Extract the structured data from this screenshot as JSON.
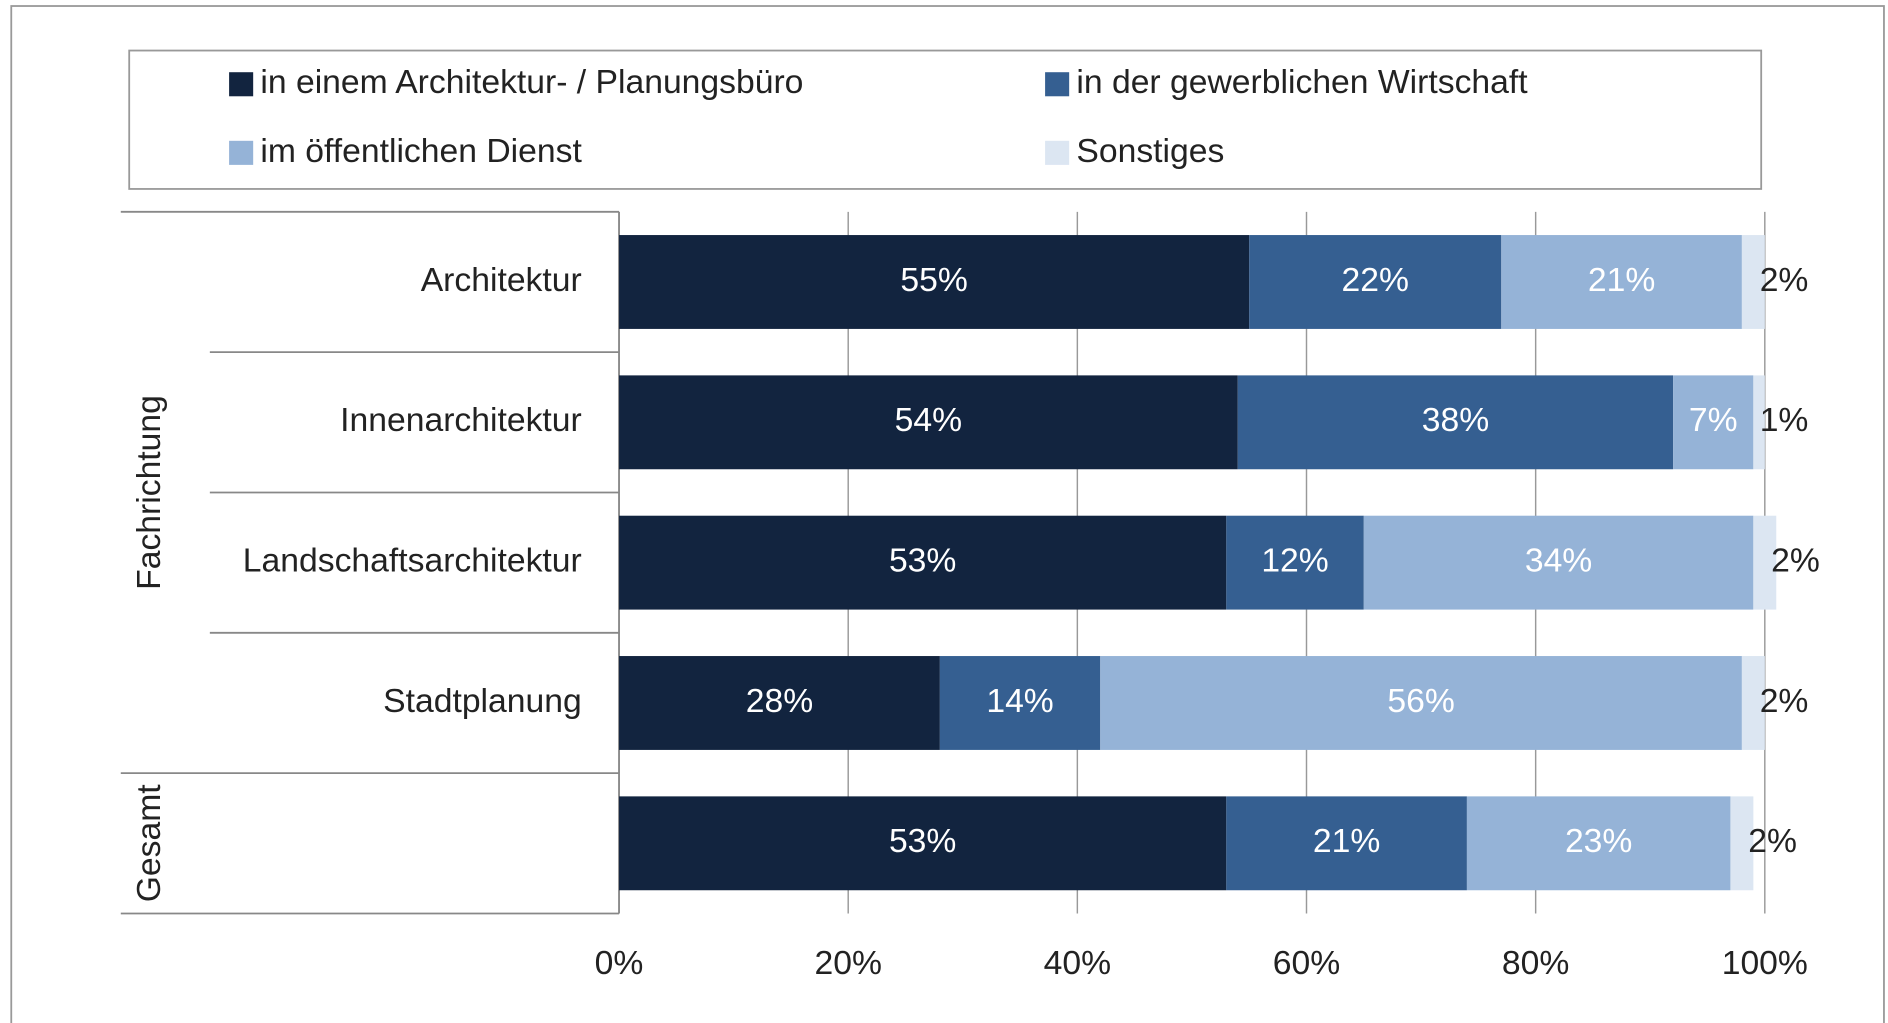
{
  "chart_data": {
    "type": "stacked_barh",
    "categories": [
      "Architektur",
      "Innenarchitektur",
      "Landschaftsarchitektur",
      "Stadtplanung",
      null
    ],
    "groups": [
      "Fachrichtung",
      "Gesamt"
    ],
    "series": [
      {
        "name": "in einem Architektur- / Planungsbüro",
        "color": "#12243f",
        "values": [
          55,
          54,
          53,
          28,
          53
        ],
        "value_labels": [
          "55%",
          "54%",
          "53%",
          "28%",
          "53%"
        ]
      },
      {
        "name": "in der gewerblichen Wirtschaft",
        "color": "#355f91",
        "values": [
          22,
          38,
          12,
          14,
          21
        ],
        "value_labels": [
          "22%",
          "38%",
          "12%",
          "14%",
          "21%"
        ]
      },
      {
        "name": "im öffentlichen Dienst",
        "color": "#95b3d7",
        "values": [
          21,
          7,
          34,
          56,
          23
        ],
        "value_labels": [
          "21%",
          "7%",
          "34%",
          "56%",
          "23%"
        ]
      },
      {
        "name": "Sonstiges",
        "color": "#dce6f2",
        "values": [
          2,
          1,
          2,
          2,
          2
        ],
        "value_labels": [
          "2%",
          "1%",
          "2%",
          "2%",
          "2%"
        ]
      }
    ],
    "xlim": [
      0,
      100
    ],
    "xticks": [
      {
        "value": 0,
        "label": "0%"
      },
      {
        "value": 20,
        "label": "20%"
      },
      {
        "value": 40,
        "label": "40%"
      },
      {
        "value": 60,
        "label": "60%"
      },
      {
        "value": 80,
        "label": "80%"
      },
      {
        "value": 100,
        "label": "100%"
      }
    ],
    "grid": true,
    "legend": "top"
  }
}
